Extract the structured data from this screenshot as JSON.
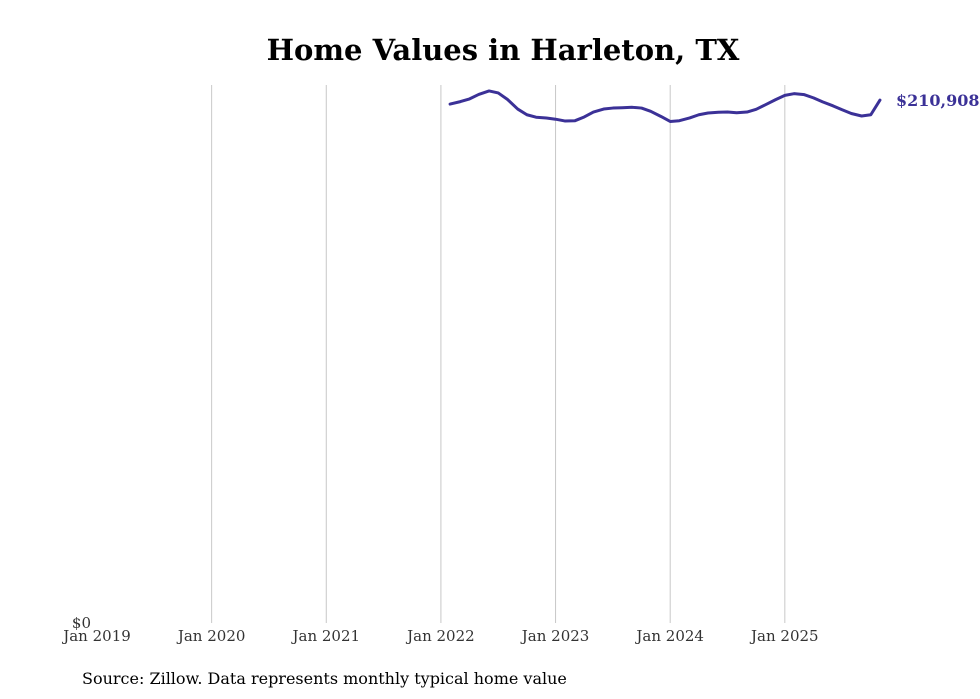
{
  "chart_data": {
    "type": "line",
    "title": "Home Values in Harleton, TX",
    "source": "Source: Zillow. Data represents monthly typical home value",
    "xlabel": "",
    "ylabel": "",
    "x_tick_labels": [
      "Jan 2019",
      "Jan 2020",
      "Jan 2021",
      "Jan 2022",
      "Jan 2023",
      "Jan 2024",
      "Jan 2025"
    ],
    "x_tick_values": [
      2019,
      2020,
      2021,
      2022,
      2023,
      2024,
      2025
    ],
    "xlim": [
      2019,
      2025.9
    ],
    "y_tick_labels": [
      "$0"
    ],
    "y_tick_values": [
      0
    ],
    "ylim": [
      0,
      217000
    ],
    "grid": "vertical",
    "end_label": "$210,908",
    "series": [
      {
        "name": "Typical home value",
        "color": "#3b3197",
        "x": [
          2022.08,
          2022.17,
          2022.25,
          2022.33,
          2022.42,
          2022.5,
          2022.58,
          2022.67,
          2022.75,
          2022.83,
          2022.92,
          2023.0,
          2023.08,
          2023.17,
          2023.25,
          2023.33,
          2023.42,
          2023.5,
          2023.58,
          2023.67,
          2023.75,
          2023.83,
          2023.92,
          2024.0,
          2024.08,
          2024.17,
          2024.25,
          2024.33,
          2024.42,
          2024.5,
          2024.58,
          2024.67,
          2024.75,
          2024.83,
          2024.92,
          2025.0,
          2025.08,
          2025.17,
          2025.25,
          2025.33,
          2025.42,
          2025.5,
          2025.58,
          2025.67,
          2025.75,
          2025.83
        ],
        "values": [
          209300,
          210300,
          211400,
          213200,
          214600,
          213800,
          211200,
          207300,
          205000,
          204000,
          203700,
          203200,
          202500,
          202600,
          204100,
          206100,
          207300,
          207700,
          207800,
          208000,
          207700,
          206400,
          204300,
          202300,
          202600,
          203700,
          205000,
          205700,
          206000,
          206100,
          205800,
          206100,
          207200,
          209000,
          211100,
          212800,
          213500,
          213100,
          211800,
          210200,
          208600,
          207000,
          205500,
          204500,
          205000,
          210908
        ]
      }
    ]
  }
}
